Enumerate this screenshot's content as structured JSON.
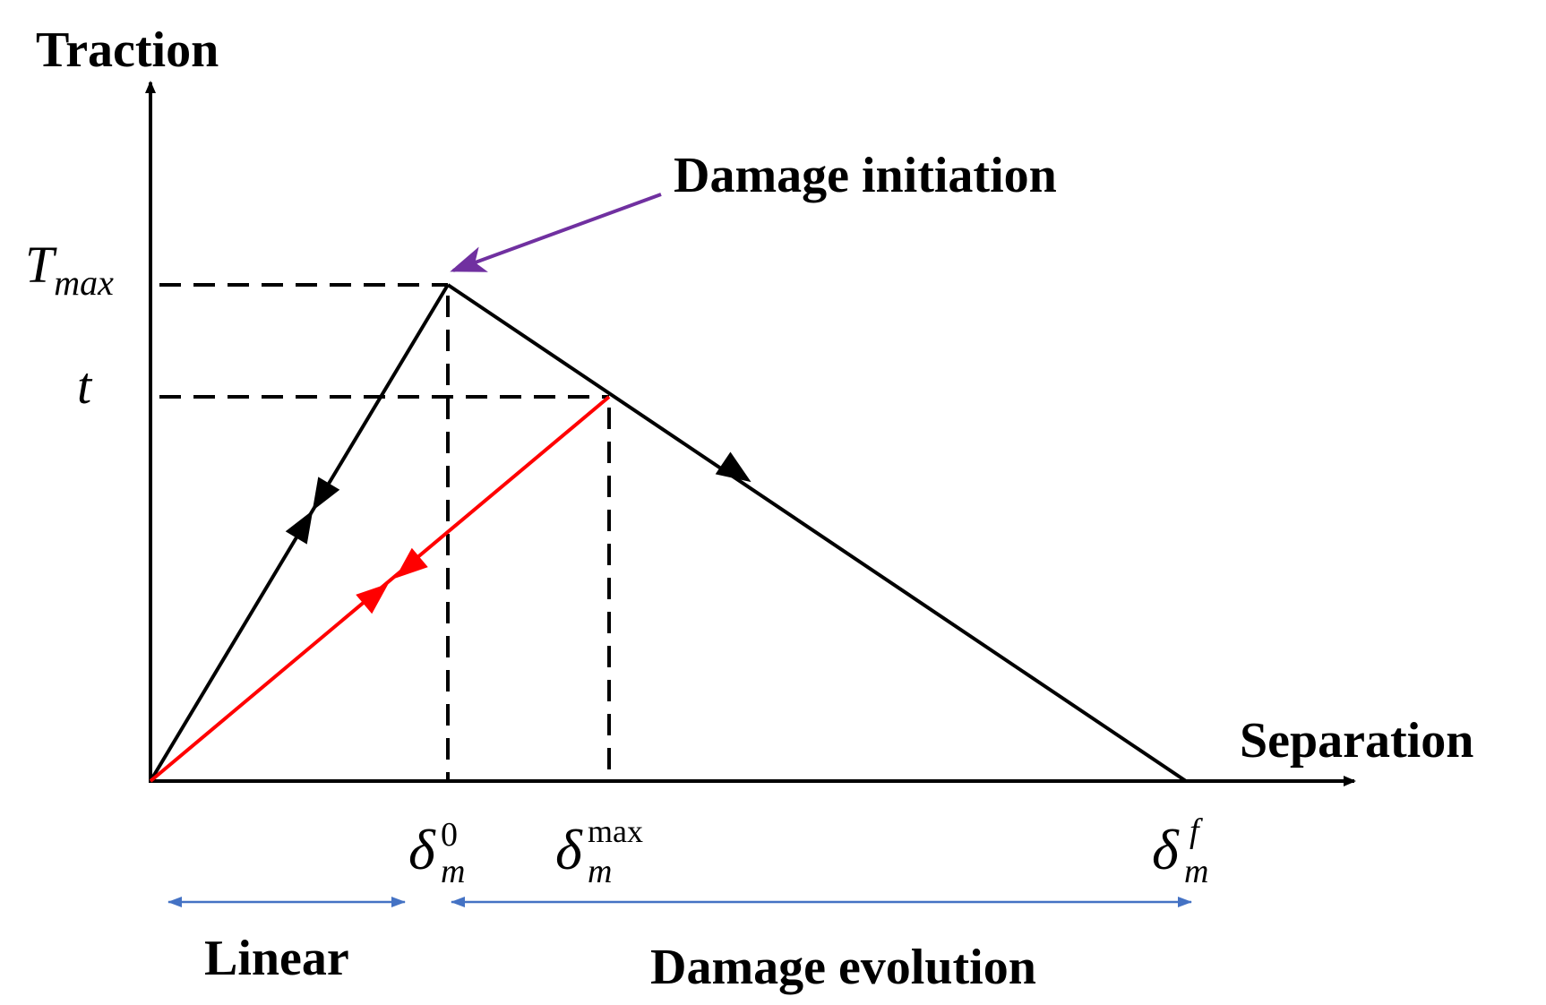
{
  "axes": {
    "y_label": "Traction",
    "x_label": "Separation"
  },
  "y_ticks": {
    "tmax_base": "T",
    "tmax_sub": "max",
    "t": "t"
  },
  "x_ticks": {
    "delta0": {
      "base": "δ",
      "sub": "m",
      "sup": "0"
    },
    "deltamax": {
      "base": "δ",
      "sub": "m",
      "sup": "max"
    },
    "deltaf": {
      "base": "δ",
      "sub": "m",
      "sup": "f"
    }
  },
  "annotations": {
    "damage_initiation": "Damage initiation",
    "linear": "Linear",
    "damage_evolution": "Damage evolution"
  },
  "colors": {
    "curve": "#000000",
    "unload": "#ff0000",
    "initiation_arrow": "#7030a0",
    "region_arrow": "#4472c4"
  }
}
